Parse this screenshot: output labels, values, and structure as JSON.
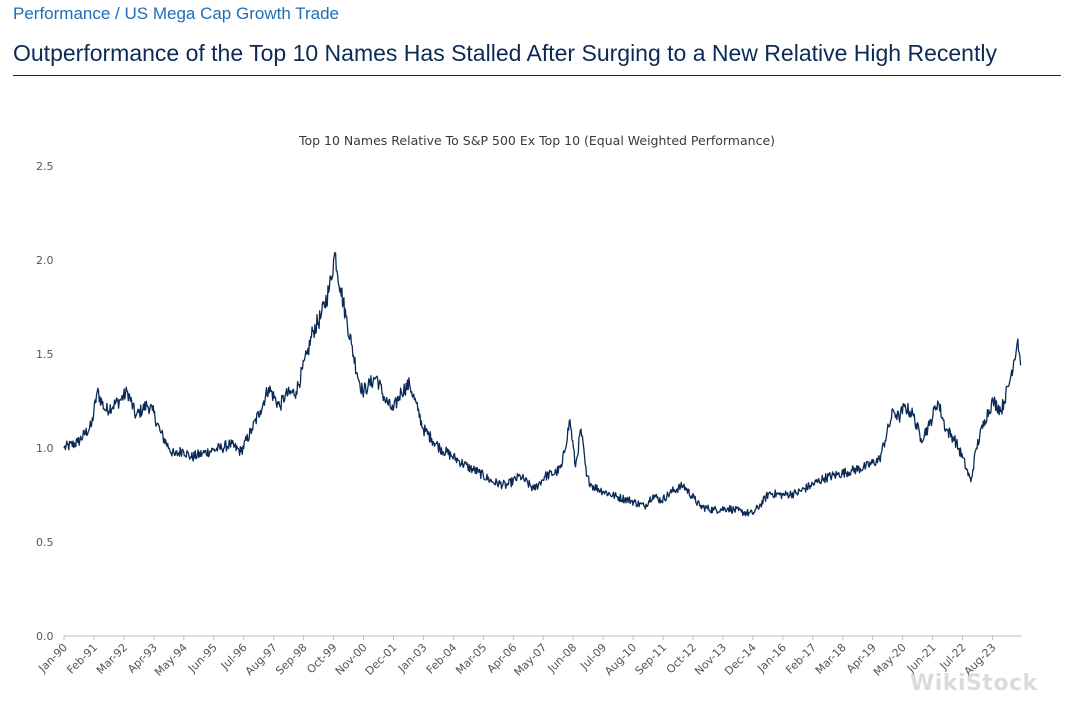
{
  "header": {
    "breadcrumb": "Performance / US Mega Cap Growth Trade",
    "title": "Outperformance of the Top 10 Names Has Stalled After Surging to a New Relative High Recently"
  },
  "watermark": "WikiStock",
  "colors": {
    "breadcrumb": "#1f6db5",
    "title": "#0b2a55",
    "line": "#0b2a55",
    "axis": "#bfbfbf"
  },
  "chart_data": {
    "type": "line",
    "title": "Top 10 Names Relative To S&P 500 Ex Top 10 (Equal Weighted Performance)",
    "xlabel": "",
    "ylabel": "",
    "ylim": [
      0,
      2.5
    ],
    "yticks": [
      "0.0",
      "0.5",
      "1.0",
      "1.5",
      "2.0",
      "2.5"
    ],
    "xticks": [
      "Jan-90",
      "Feb-91",
      "Mar-92",
      "Apr-93",
      "May-94",
      "Jun-95",
      "Jul-96",
      "Aug-97",
      "Sep-98",
      "Oct-99",
      "Nov-00",
      "Dec-01",
      "Jan-03",
      "Feb-04",
      "Mar-05",
      "Apr-06",
      "May-07",
      "Jun-08",
      "Jul-09",
      "Aug-10",
      "Sep-11",
      "Oct-12",
      "Nov-13",
      "Dec-14",
      "Jan-16",
      "Feb-17",
      "Mar-18",
      "Apr-19",
      "May-20",
      "Jun-21",
      "Jul-22",
      "Aug-23"
    ],
    "series": [
      {
        "name": "Top 10 Names Relative To S&P 500 Ex Top 10",
        "x": [
          1990.0,
          1990.5,
          1991.0,
          1991.2,
          1991.5,
          1992.0,
          1992.3,
          1992.6,
          1993.0,
          1993.2,
          1993.5,
          1993.8,
          1994.0,
          1994.3,
          1994.6,
          1995.0,
          1995.4,
          1995.7,
          1996.0,
          1996.4,
          1996.8,
          1997.1,
          1997.4,
          1997.8,
          1998.0,
          1998.4,
          1998.8,
          1999.0,
          1999.3,
          1999.6,
          1999.8,
          2000.0,
          2000.2,
          2000.4,
          2000.6,
          2000.8,
          2001.0,
          2001.3,
          2001.6,
          2001.9,
          2002.2,
          2002.5,
          2002.8,
          2003.0,
          2003.3,
          2003.6,
          2004.0,
          2004.3,
          2004.6,
          2005.0,
          2005.5,
          2006.0,
          2006.5,
          2007.0,
          2007.4,
          2007.8,
          2008.0,
          2008.3,
          2008.5,
          2008.7,
          2008.9,
          2009.1,
          2009.5,
          2010.0,
          2010.5,
          2011.0,
          2011.3,
          2011.6,
          2012.0,
          2012.4,
          2012.8,
          2013.0,
          2013.5,
          2014.0,
          2014.5,
          2014.9,
          2015.2,
          2015.5,
          2016.0,
          2016.5,
          2017.0,
          2017.5,
          2018.0,
          2018.5,
          2019.0,
          2019.5,
          2020.0,
          2020.2,
          2020.4,
          2020.7,
          2021.0,
          2021.3,
          2021.6,
          2021.9,
          2022.2,
          2022.5,
          2022.8,
          2023.0,
          2023.3,
          2023.6,
          2023.9,
          2024.2,
          2024.5,
          2024.6
        ],
        "values": [
          1.0,
          1.03,
          1.12,
          1.3,
          1.2,
          1.25,
          1.3,
          1.17,
          1.23,
          1.2,
          1.08,
          1.0,
          0.96,
          0.99,
          0.95,
          0.97,
          0.99,
          1.0,
          1.02,
          0.98,
          1.1,
          1.2,
          1.32,
          1.22,
          1.28,
          1.3,
          1.5,
          1.62,
          1.7,
          1.85,
          2.04,
          1.85,
          1.7,
          1.55,
          1.4,
          1.3,
          1.33,
          1.38,
          1.26,
          1.2,
          1.3,
          1.34,
          1.2,
          1.1,
          1.05,
          1.0,
          0.96,
          0.93,
          0.9,
          0.87,
          0.82,
          0.8,
          0.85,
          0.78,
          0.85,
          0.87,
          0.9,
          1.15,
          0.9,
          1.1,
          0.85,
          0.8,
          0.77,
          0.74,
          0.72,
          0.69,
          0.75,
          0.72,
          0.77,
          0.8,
          0.73,
          0.69,
          0.67,
          0.68,
          0.66,
          0.65,
          0.7,
          0.76,
          0.75,
          0.76,
          0.8,
          0.84,
          0.86,
          0.88,
          0.9,
          0.94,
          1.2,
          1.16,
          1.22,
          1.18,
          1.05,
          1.12,
          1.25,
          1.1,
          1.05,
          0.95,
          0.82,
          1.0,
          1.15,
          1.25,
          1.2,
          1.35,
          1.58,
          1.44
        ]
      }
    ]
  }
}
